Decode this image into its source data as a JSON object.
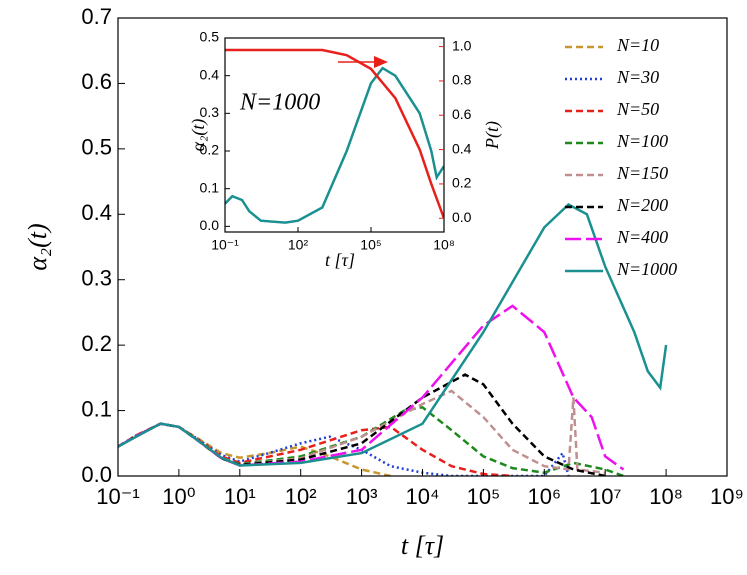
{
  "chart_data": [
    {
      "type": "line",
      "xscale": "log",
      "ylabel": "α₂(t)",
      "xlabel": "t [τ]",
      "xlim": [
        0.1,
        1000000000
      ],
      "ylim": [
        0,
        0.7
      ],
      "xticks": [
        {
          "value": 0.1,
          "label": "10⁻¹"
        },
        {
          "value": 1,
          "label": "10⁰"
        },
        {
          "value": 10,
          "label": "10¹"
        },
        {
          "value": 100,
          "label": "10²"
        },
        {
          "value": 1000,
          "label": "10³"
        },
        {
          "value": 10000,
          "label": "10⁴"
        },
        {
          "value": 100000,
          "label": "10⁵"
        },
        {
          "value": 1000000,
          "label": "10⁶"
        },
        {
          "value": 10000000,
          "label": "10⁷"
        },
        {
          "value": 100000000,
          "label": "10⁸"
        },
        {
          "value": 1000000000,
          "label": "10⁹"
        }
      ],
      "yticks": [
        {
          "value": 0,
          "label": "0.0"
        },
        0.1,
        0.2,
        0.3,
        0.4,
        0.5,
        0.6,
        0.7
      ],
      "grid": false,
      "legend": "upper right",
      "series": [
        {
          "name": "N=10",
          "color": "#c8962e",
          "linestyle": "dashed",
          "x": [
            0.1,
            0.2,
            0.5,
            1,
            2,
            5,
            10,
            30,
            100,
            300,
            1000,
            3000
          ],
          "values": [
            0.045,
            0.062,
            0.08,
            0.075,
            0.058,
            0.035,
            0.028,
            0.035,
            0.045,
            0.03,
            0.01,
            0
          ]
        },
        {
          "name": "N=30",
          "color": "#1f3fd8",
          "linestyle": "dotted",
          "x": [
            0.1,
            0.2,
            0.5,
            1,
            2,
            5,
            10,
            30,
            100,
            300,
            1000,
            3000,
            10000,
            30000,
            1000000,
            2000000,
            2500000
          ],
          "values": [
            0.045,
            0.062,
            0.08,
            0.075,
            0.057,
            0.032,
            0.022,
            0.035,
            0.05,
            0.06,
            0.04,
            0.015,
            0.005,
            0,
            0,
            0.035,
            0
          ]
        },
        {
          "name": "N=50",
          "color": "#e8201c",
          "linestyle": "dashed",
          "x": [
            0.1,
            0.2,
            0.5,
            1,
            2,
            5,
            10,
            100,
            1000,
            3000,
            10000,
            30000,
            100000,
            300000
          ],
          "values": [
            0.045,
            0.062,
            0.08,
            0.075,
            0.056,
            0.03,
            0.02,
            0.04,
            0.07,
            0.075,
            0.04,
            0.015,
            0.003,
            0
          ]
        },
        {
          "name": "N=100",
          "color": "#1e8a1e",
          "linestyle": "dashed",
          "x": [
            0.1,
            0.2,
            0.5,
            1,
            2,
            5,
            10,
            100,
            1000,
            5000,
            10000,
            30000,
            100000,
            300000,
            1000000,
            3000000,
            10000000,
            20000000
          ],
          "values": [
            0.045,
            0.061,
            0.08,
            0.075,
            0.055,
            0.028,
            0.018,
            0.03,
            0.06,
            0.1,
            0.105,
            0.07,
            0.03,
            0.012,
            0.005,
            0.02,
            0.01,
            0
          ]
        },
        {
          "name": "N=150",
          "color": "#c09090",
          "linestyle": "dashed",
          "x": [
            0.1,
            0.2,
            0.5,
            1,
            2,
            5,
            10,
            100,
            1000,
            10000,
            30000,
            100000,
            300000,
            1000000,
            2500000,
            3000000,
            3500000,
            10000000
          ],
          "values": [
            0.045,
            0.061,
            0.08,
            0.075,
            0.055,
            0.028,
            0.017,
            0.027,
            0.06,
            0.11,
            0.13,
            0.09,
            0.04,
            0.015,
            0.01,
            0.12,
            0.01,
            0.005
          ]
        },
        {
          "name": "N=200",
          "color": "#000000",
          "linestyle": "dashed",
          "x": [
            0.1,
            0.2,
            0.5,
            1,
            2,
            5,
            10,
            100,
            1000,
            10000,
            50000,
            100000,
            300000,
            1000000,
            3000000,
            10000000
          ],
          "values": [
            0.045,
            0.061,
            0.08,
            0.075,
            0.055,
            0.027,
            0.017,
            0.025,
            0.05,
            0.12,
            0.155,
            0.14,
            0.08,
            0.03,
            0.01,
            0
          ]
        },
        {
          "name": "N=400",
          "color": "#ee10ee",
          "linestyle": "longdash",
          "x": [
            0.1,
            0.2,
            0.5,
            1,
            2,
            5,
            10,
            100,
            1000,
            10000,
            100000,
            300000,
            1000000,
            3000000,
            6000000,
            10000000,
            20000000
          ],
          "values": [
            0.045,
            0.061,
            0.08,
            0.075,
            0.055,
            0.027,
            0.016,
            0.022,
            0.04,
            0.12,
            0.23,
            0.26,
            0.22,
            0.12,
            0.09,
            0.03,
            0.01
          ]
        },
        {
          "name": "N=1000",
          "color": "#1a9090",
          "linestyle": "solid",
          "x": [
            0.1,
            0.2,
            0.5,
            1,
            2,
            5,
            10,
            100,
            1000,
            10000,
            100000,
            1000000,
            2500000,
            5000000,
            10000000,
            30000000,
            50000000,
            80000000,
            100000000
          ],
          "values": [
            0.045,
            0.06,
            0.08,
            0.075,
            0.055,
            0.028,
            0.016,
            0.02,
            0.035,
            0.08,
            0.22,
            0.38,
            0.415,
            0.4,
            0.32,
            0.22,
            0.16,
            0.135,
            0.2
          ]
        }
      ]
    },
    {
      "type": "line",
      "xscale": "log",
      "ylabel": "α₂(t)",
      "y2label": "P(t)",
      "xlabel": "t [τ]",
      "annotation": "N=1000",
      "xlim": [
        0.1,
        100000000
      ],
      "ylim": [
        -0.015,
        0.5
      ],
      "y2lim": [
        -0.08,
        1.05
      ],
      "xticks": [
        {
          "value": 0.1,
          "label": "10⁻¹"
        },
        {
          "value": 100,
          "label": "10²"
        },
        {
          "value": 100000,
          "label": "10⁵"
        },
        {
          "value": 100000000,
          "label": "10⁸"
        }
      ],
      "yticks": [
        {
          "value": 0,
          "label": "0.0"
        },
        0.1,
        0.2,
        0.3,
        0.4,
        0.5
      ],
      "y2ticks": [
        {
          "value": 0,
          "label": "0.0"
        },
        0.2,
        0.4,
        0.6,
        0.8,
        {
          "value": 1,
          "label": "1.0"
        }
      ],
      "series": [
        {
          "color": "#1a9090",
          "linestyle": "solid",
          "x": [
            0.1,
            0.2,
            0.5,
            1,
            3,
            30,
            100,
            1000,
            10000,
            100000,
            300000,
            1000000,
            10000000,
            30000000,
            50000000,
            100000000
          ],
          "values": [
            0.06,
            0.08,
            0.07,
            0.04,
            0.015,
            0.01,
            0.015,
            0.05,
            0.2,
            0.38,
            0.42,
            0.4,
            0.3,
            0.2,
            0.13,
            0.16
          ]
        },
        {
          "color": "#e8201c",
          "linestyle": "solid",
          "axis": "y2",
          "x": [
            0.1,
            1,
            1000,
            10000,
            100000,
            1000000,
            10000000,
            30000000,
            100000000
          ],
          "values": [
            0.98,
            0.98,
            0.98,
            0.95,
            0.87,
            0.7,
            0.4,
            0.2,
            0
          ]
        }
      ]
    }
  ]
}
